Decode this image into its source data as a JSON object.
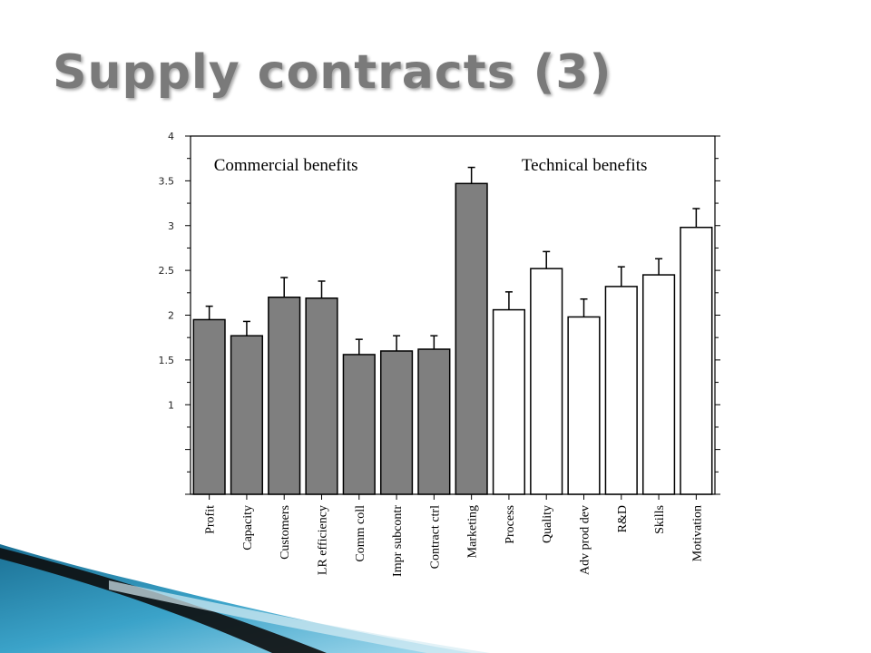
{
  "slide": {
    "title": "Supply contracts (3)"
  },
  "chart_data": {
    "type": "bar",
    "title": "",
    "xlabel": "",
    "ylabel": "",
    "ylim": [
      0.0,
      4.0
    ],
    "yticks": [
      "4",
      "3.5",
      "3",
      "2.5",
      "2",
      "1.5",
      "1"
    ],
    "ytick_values": [
      4,
      3.5,
      3,
      2.5,
      2,
      1.5,
      1
    ],
    "categories": [
      "Profit",
      "Capacity",
      "Customers",
      "LR efficiency",
      "Comm coll",
      "Impr subcontr",
      "Contract ctrl",
      "Marketing",
      "Process",
      "Quality",
      "Adv prod dev",
      "R&D",
      "Skills",
      "Motivation"
    ],
    "values": [
      1.95,
      1.77,
      2.2,
      2.19,
      1.56,
      1.6,
      1.62,
      3.47,
      2.06,
      2.52,
      1.98,
      2.32,
      2.45,
      2.98
    ],
    "errors": [
      0.15,
      0.16,
      0.22,
      0.19,
      0.17,
      0.17,
      0.15,
      0.18,
      0.2,
      0.19,
      0.2,
      0.22,
      0.18,
      0.21
    ],
    "groups": [
      {
        "label": "Commercial benefits",
        "start": 0,
        "end": 7,
        "fill": "#7f7f7f"
      },
      {
        "label": "Technical benefits",
        "start": 8,
        "end": 13,
        "fill": "#ffffff"
      }
    ],
    "grid": false,
    "error_bars": "upper"
  }
}
